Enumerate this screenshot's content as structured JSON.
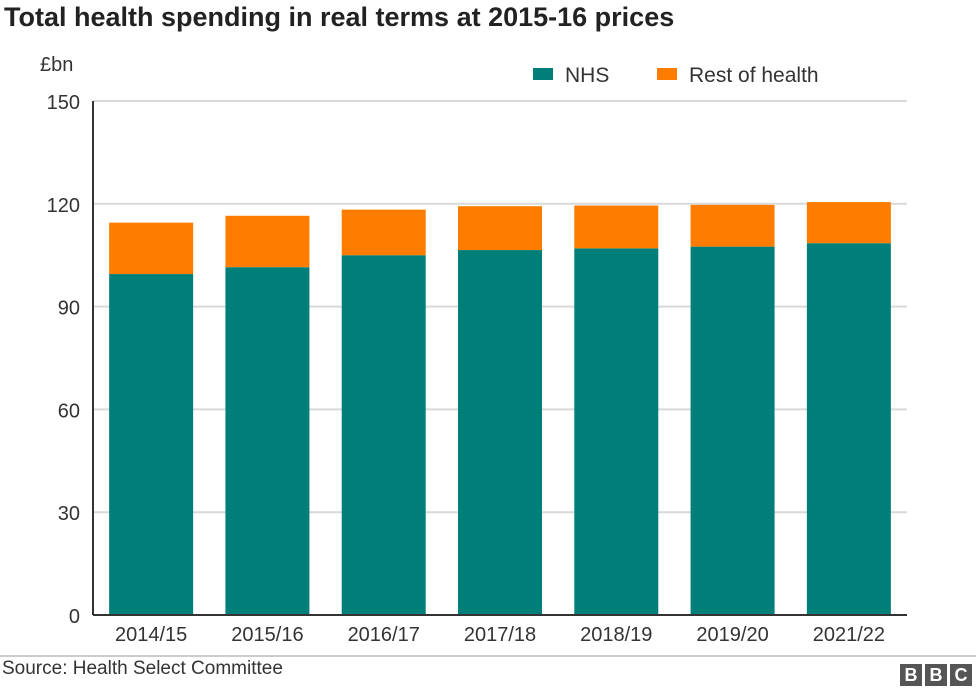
{
  "chart_data": {
    "type": "bar",
    "stacked": true,
    "title": "Total health spending in real terms at 2015-16 prices",
    "ylabel": "£bn",
    "xlabel": "",
    "ylim": [
      0,
      150
    ],
    "yticks": [
      "0",
      "30",
      "60",
      "90",
      "120",
      "150"
    ],
    "grid": true,
    "legend_position": "top-right",
    "categories": [
      "2014/15",
      "2015/16",
      "2016/17",
      "2017/18",
      "2018/19",
      "2019/20",
      "2021/22"
    ],
    "series": [
      {
        "name": "NHS",
        "color": "#007f7a",
        "values": [
          99.5,
          101.5,
          105,
          106.5,
          107,
          107.5,
          108.5
        ]
      },
      {
        "name": "Rest of health",
        "color": "#fe7d00",
        "values": [
          15,
          15,
          13.3,
          12.8,
          12.5,
          12.2,
          12
        ]
      }
    ]
  },
  "footer": {
    "source": "Source: Health Select Committee",
    "logo_letters": [
      "B",
      "B",
      "C"
    ]
  }
}
